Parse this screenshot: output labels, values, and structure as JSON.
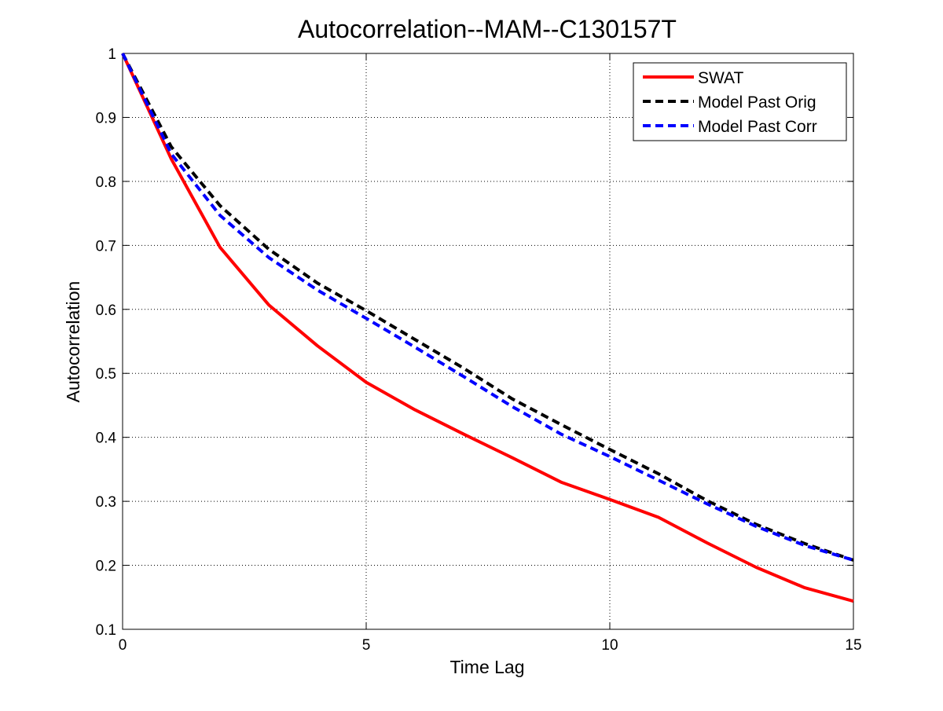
{
  "chart_data": {
    "type": "line",
    "title": "Autocorrelation--MAM--C130157T",
    "xlabel": "Time Lag",
    "ylabel": "Autocorrelation",
    "xlim": [
      0,
      15
    ],
    "ylim": [
      0.1,
      1
    ],
    "xticks": [
      0,
      5,
      10,
      15
    ],
    "xtick_labels": [
      "0",
      "5",
      "10",
      "15"
    ],
    "yticks": [
      0.1,
      0.2,
      0.3,
      0.4,
      0.5,
      0.6,
      0.7,
      0.8,
      0.9,
      1
    ],
    "ytick_labels": [
      "0.1",
      "0.2",
      "0.3",
      "0.4",
      "0.5",
      "0.6",
      "0.7",
      "0.8",
      "0.9",
      "1"
    ],
    "grid": true,
    "legend_position": "top-right",
    "x": [
      0,
      1,
      2,
      3,
      4,
      5,
      6,
      7,
      8,
      9,
      10,
      11,
      12,
      13,
      14,
      15
    ],
    "series": [
      {
        "name": "SWAT",
        "color": "#ff0000",
        "style": "solid",
        "values": [
          1.0,
          0.835,
          0.697,
          0.607,
          0.543,
          0.486,
          0.443,
          0.405,
          0.368,
          0.33,
          0.303,
          0.275,
          0.235,
          0.197,
          0.165,
          0.144
        ]
      },
      {
        "name": "Model Past Orig",
        "color": "#000000",
        "style": "dashed",
        "values": [
          1.0,
          0.854,
          0.762,
          0.694,
          0.641,
          0.598,
          0.553,
          0.508,
          0.46,
          0.42,
          0.381,
          0.343,
          0.301,
          0.264,
          0.234,
          0.208
        ]
      },
      {
        "name": "Model Past Corr",
        "color": "#0000ff",
        "style": "dashed",
        "values": [
          1.0,
          0.843,
          0.747,
          0.681,
          0.63,
          0.586,
          0.541,
          0.495,
          0.448,
          0.405,
          0.37,
          0.333,
          0.296,
          0.261,
          0.231,
          0.208
        ]
      }
    ]
  }
}
